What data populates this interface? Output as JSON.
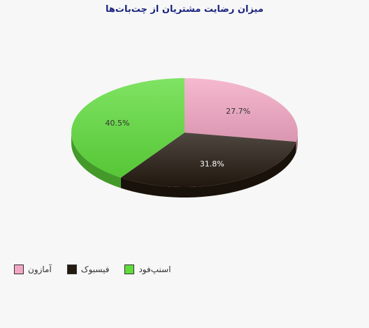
{
  "chart_data": {
    "type": "pie",
    "title": "میزان رضایت مشتریان از چت‌بات‌ها",
    "slices": [
      {
        "name": "آمازون",
        "value": 27.7,
        "label": "27.7%",
        "color": "#f2a7c3",
        "label_color": "#333333"
      },
      {
        "name": "فیسبوک",
        "value": 31.8,
        "label": "31.8%",
        "color": "#231a10",
        "label_color": "#ffffff"
      },
      {
        "name": "اسنپ‌فود",
        "value": 40.5,
        "label": "40.5%",
        "color": "#5fdc3c",
        "label_color": "#333333"
      }
    ],
    "legend_position": "bottom-left",
    "start_angle_deg": 90
  }
}
